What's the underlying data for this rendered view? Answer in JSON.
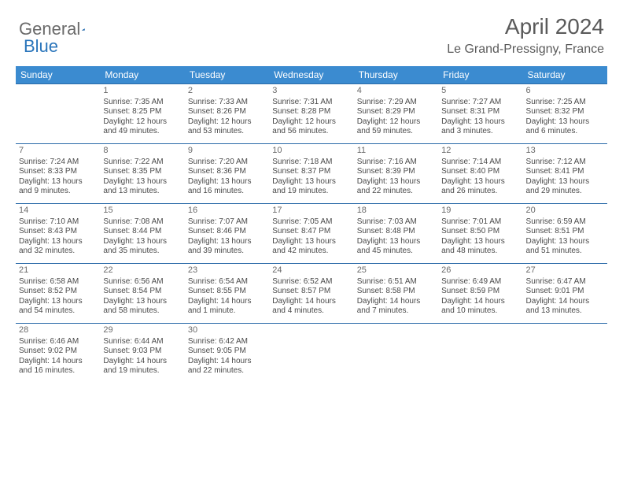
{
  "logo": {
    "text1": "General",
    "text2": "Blue"
  },
  "title": "April 2024",
  "location": "Le Grand-Pressigny, France",
  "colors": {
    "header_bg": "#3b8bd0",
    "header_text": "#ffffff",
    "row_border": "#2a6aa8",
    "body_text": "#4a4a4a",
    "title_text": "#5a5a5a",
    "logo_gray": "#6a6a6a",
    "logo_blue": "#2a75bb"
  },
  "dow": [
    "Sunday",
    "Monday",
    "Tuesday",
    "Wednesday",
    "Thursday",
    "Friday",
    "Saturday"
  ],
  "weeks": [
    [
      null,
      {
        "n": "1",
        "sunrise": "7:35 AM",
        "sunset": "8:25 PM",
        "daylight": "12 hours and 49 minutes."
      },
      {
        "n": "2",
        "sunrise": "7:33 AM",
        "sunset": "8:26 PM",
        "daylight": "12 hours and 53 minutes."
      },
      {
        "n": "3",
        "sunrise": "7:31 AM",
        "sunset": "8:28 PM",
        "daylight": "12 hours and 56 minutes."
      },
      {
        "n": "4",
        "sunrise": "7:29 AM",
        "sunset": "8:29 PM",
        "daylight": "12 hours and 59 minutes."
      },
      {
        "n": "5",
        "sunrise": "7:27 AM",
        "sunset": "8:31 PM",
        "daylight": "13 hours and 3 minutes."
      },
      {
        "n": "6",
        "sunrise": "7:25 AM",
        "sunset": "8:32 PM",
        "daylight": "13 hours and 6 minutes."
      }
    ],
    [
      {
        "n": "7",
        "sunrise": "7:24 AM",
        "sunset": "8:33 PM",
        "daylight": "13 hours and 9 minutes."
      },
      {
        "n": "8",
        "sunrise": "7:22 AM",
        "sunset": "8:35 PM",
        "daylight": "13 hours and 13 minutes."
      },
      {
        "n": "9",
        "sunrise": "7:20 AM",
        "sunset": "8:36 PM",
        "daylight": "13 hours and 16 minutes."
      },
      {
        "n": "10",
        "sunrise": "7:18 AM",
        "sunset": "8:37 PM",
        "daylight": "13 hours and 19 minutes."
      },
      {
        "n": "11",
        "sunrise": "7:16 AM",
        "sunset": "8:39 PM",
        "daylight": "13 hours and 22 minutes."
      },
      {
        "n": "12",
        "sunrise": "7:14 AM",
        "sunset": "8:40 PM",
        "daylight": "13 hours and 26 minutes."
      },
      {
        "n": "13",
        "sunrise": "7:12 AM",
        "sunset": "8:41 PM",
        "daylight": "13 hours and 29 minutes."
      }
    ],
    [
      {
        "n": "14",
        "sunrise": "7:10 AM",
        "sunset": "8:43 PM",
        "daylight": "13 hours and 32 minutes."
      },
      {
        "n": "15",
        "sunrise": "7:08 AM",
        "sunset": "8:44 PM",
        "daylight": "13 hours and 35 minutes."
      },
      {
        "n": "16",
        "sunrise": "7:07 AM",
        "sunset": "8:46 PM",
        "daylight": "13 hours and 39 minutes."
      },
      {
        "n": "17",
        "sunrise": "7:05 AM",
        "sunset": "8:47 PM",
        "daylight": "13 hours and 42 minutes."
      },
      {
        "n": "18",
        "sunrise": "7:03 AM",
        "sunset": "8:48 PM",
        "daylight": "13 hours and 45 minutes."
      },
      {
        "n": "19",
        "sunrise": "7:01 AM",
        "sunset": "8:50 PM",
        "daylight": "13 hours and 48 minutes."
      },
      {
        "n": "20",
        "sunrise": "6:59 AM",
        "sunset": "8:51 PM",
        "daylight": "13 hours and 51 minutes."
      }
    ],
    [
      {
        "n": "21",
        "sunrise": "6:58 AM",
        "sunset": "8:52 PM",
        "daylight": "13 hours and 54 minutes."
      },
      {
        "n": "22",
        "sunrise": "6:56 AM",
        "sunset": "8:54 PM",
        "daylight": "13 hours and 58 minutes."
      },
      {
        "n": "23",
        "sunrise": "6:54 AM",
        "sunset": "8:55 PM",
        "daylight": "14 hours and 1 minute."
      },
      {
        "n": "24",
        "sunrise": "6:52 AM",
        "sunset": "8:57 PM",
        "daylight": "14 hours and 4 minutes."
      },
      {
        "n": "25",
        "sunrise": "6:51 AM",
        "sunset": "8:58 PM",
        "daylight": "14 hours and 7 minutes."
      },
      {
        "n": "26",
        "sunrise": "6:49 AM",
        "sunset": "8:59 PM",
        "daylight": "14 hours and 10 minutes."
      },
      {
        "n": "27",
        "sunrise": "6:47 AM",
        "sunset": "9:01 PM",
        "daylight": "14 hours and 13 minutes."
      }
    ],
    [
      {
        "n": "28",
        "sunrise": "6:46 AM",
        "sunset": "9:02 PM",
        "daylight": "14 hours and 16 minutes."
      },
      {
        "n": "29",
        "sunrise": "6:44 AM",
        "sunset": "9:03 PM",
        "daylight": "14 hours and 19 minutes."
      },
      {
        "n": "30",
        "sunrise": "6:42 AM",
        "sunset": "9:05 PM",
        "daylight": "14 hours and 22 minutes."
      },
      null,
      null,
      null,
      null
    ]
  ],
  "labels": {
    "sunrise": "Sunrise:",
    "sunset": "Sunset:",
    "daylight": "Daylight:"
  }
}
